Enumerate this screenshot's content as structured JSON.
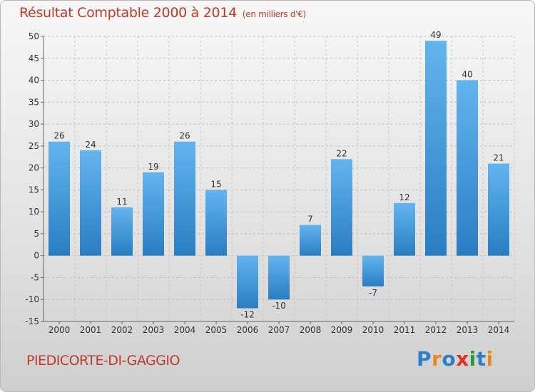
{
  "chart_data": {
    "type": "bar",
    "title": "Résultat Comptable 2000 à 2014",
    "subtitle": "(en milliers d'€)",
    "categories": [
      "2000",
      "2001",
      "2002",
      "2003",
      "2004",
      "2005",
      "2006",
      "2007",
      "2008",
      "2009",
      "2010",
      "2011",
      "2012",
      "2013",
      "2014"
    ],
    "values": [
      26,
      24,
      11,
      19,
      26,
      15,
      -12,
      -10,
      7,
      22,
      -7,
      12,
      49,
      40,
      21
    ],
    "ylim": [
      -15,
      50
    ],
    "yticks": [
      -15,
      -10,
      -5,
      0,
      5,
      10,
      15,
      20,
      25,
      30,
      35,
      40,
      45,
      50
    ],
    "grid": true,
    "bar_color": "#3a8fd4",
    "bar_color_light": "#5fb2ec"
  },
  "footer": {
    "commune": "PIEDICORTE-DI-GAGGIO",
    "logo_letters": [
      {
        "ch": "P",
        "color": "#2a7fc7"
      },
      {
        "ch": "r",
        "color": "#e58b1e"
      },
      {
        "ch": "o",
        "color": "#2a7fc7"
      },
      {
        "ch": "x",
        "color": "#d9342b"
      },
      {
        "ch": "i",
        "color": "#2a9a3c"
      },
      {
        "ch": "t",
        "color": "#2a7fc7"
      },
      {
        "ch": "i",
        "color": "#e58b1e"
      }
    ]
  },
  "colors": {
    "title": "#c0392b",
    "text": "#333333"
  }
}
